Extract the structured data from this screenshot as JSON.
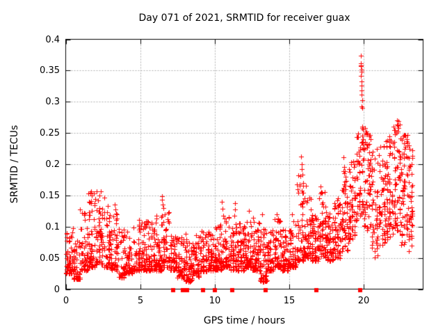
{
  "figure": {
    "title": "Day 071 of 2021, SRMTID for receiver guax",
    "xlabel": "GPS time / hours",
    "ylabel": "SRMTID / TECUs",
    "background_color": "#ffffff",
    "text_color": "#000000"
  },
  "chart_data": {
    "type": "scatter",
    "title": "Day 071 of 2021, SRMTID for receiver guax",
    "xlabel": "GPS time / hours",
    "ylabel": "SRMTID / TECUs",
    "xlim": [
      0,
      24
    ],
    "ylim": [
      0,
      0.4
    ],
    "xtick_values": [
      0,
      5,
      10,
      15,
      20
    ],
    "xtick_labels": [
      "0",
      "5",
      "10",
      "15",
      "20"
    ],
    "ytick_values": [
      0,
      0.05,
      0.1,
      0.15,
      0.2,
      0.25,
      0.3,
      0.35,
      0.4
    ],
    "ytick_labels": [
      "0",
      "0.05",
      "0.1",
      "0.15",
      "0.2",
      "0.25",
      "0.3",
      "0.35",
      "0.4"
    ],
    "grid": true,
    "grid_style": "dashed",
    "grid_color": "#b0b0b0",
    "axis_color": "#000000",
    "legend_position": "none",
    "series": [
      {
        "name": "SRMTID",
        "marker": "plus",
        "color": "#ff0000",
        "envelope_bins_format": "[x_start_hours, x_end_hours, y_min_TECUs, y_max_TECUs, point_count]",
        "envelope_bins": [
          [
            0.0,
            0.5,
            0.025,
            0.095,
            55
          ],
          [
            0.5,
            1.0,
            0.016,
            0.085,
            55
          ],
          [
            1.0,
            1.5,
            0.03,
            0.13,
            50
          ],
          [
            1.5,
            2.0,
            0.035,
            0.155,
            55
          ],
          [
            2.0,
            2.5,
            0.04,
            0.15,
            55
          ],
          [
            2.5,
            3.0,
            0.035,
            0.135,
            50
          ],
          [
            3.0,
            3.5,
            0.03,
            0.125,
            50
          ],
          [
            3.5,
            4.0,
            0.018,
            0.1,
            50
          ],
          [
            4.0,
            4.5,
            0.025,
            0.095,
            50
          ],
          [
            4.5,
            5.0,
            0.03,
            0.115,
            55
          ],
          [
            5.0,
            5.5,
            0.03,
            0.115,
            55
          ],
          [
            5.5,
            6.0,
            0.03,
            0.112,
            55
          ],
          [
            6.0,
            6.5,
            0.03,
            0.12,
            55
          ],
          [
            6.5,
            7.0,
            0.035,
            0.125,
            50
          ],
          [
            7.0,
            7.5,
            0.03,
            0.088,
            50
          ],
          [
            7.5,
            8.0,
            0.018,
            0.085,
            50
          ],
          [
            8.0,
            8.5,
            0.012,
            0.09,
            55
          ],
          [
            8.5,
            9.0,
            0.02,
            0.088,
            55
          ],
          [
            9.0,
            9.5,
            0.028,
            0.092,
            50
          ],
          [
            9.5,
            10.0,
            0.03,
            0.1,
            55
          ],
          [
            10.0,
            10.5,
            0.03,
            0.105,
            55
          ],
          [
            10.5,
            11.0,
            0.035,
            0.118,
            55
          ],
          [
            11.0,
            11.5,
            0.03,
            0.105,
            50
          ],
          [
            11.5,
            12.0,
            0.03,
            0.11,
            55
          ],
          [
            12.0,
            12.5,
            0.035,
            0.115,
            60
          ],
          [
            12.5,
            13.0,
            0.03,
            0.118,
            60
          ],
          [
            13.0,
            13.5,
            0.012,
            0.1,
            55
          ],
          [
            13.5,
            14.0,
            0.03,
            0.095,
            50
          ],
          [
            14.0,
            14.5,
            0.035,
            0.115,
            55
          ],
          [
            14.5,
            15.0,
            0.03,
            0.11,
            55
          ],
          [
            15.0,
            15.5,
            0.035,
            0.118,
            55
          ],
          [
            15.5,
            16.0,
            0.045,
            0.19,
            55
          ],
          [
            16.0,
            16.5,
            0.05,
            0.155,
            55
          ],
          [
            16.5,
            17.0,
            0.045,
            0.13,
            55
          ],
          [
            17.0,
            17.5,
            0.05,
            0.158,
            55
          ],
          [
            17.5,
            18.0,
            0.045,
            0.125,
            55
          ],
          [
            18.0,
            18.5,
            0.05,
            0.145,
            55
          ],
          [
            18.5,
            19.0,
            0.06,
            0.195,
            55
          ],
          [
            19.0,
            19.5,
            0.08,
            0.205,
            55
          ],
          [
            19.5,
            20.0,
            0.11,
            0.26,
            55
          ],
          [
            20.0,
            20.5,
            0.09,
            0.26,
            55
          ],
          [
            20.5,
            21.0,
            0.05,
            0.22,
            45
          ],
          [
            21.0,
            21.5,
            0.07,
            0.23,
            55
          ],
          [
            21.5,
            22.0,
            0.08,
            0.245,
            60
          ],
          [
            22.0,
            22.5,
            0.09,
            0.27,
            60
          ],
          [
            22.5,
            23.0,
            0.07,
            0.248,
            60
          ],
          [
            23.0,
            23.3,
            0.06,
            0.23,
            40
          ]
        ],
        "notable_points_format": "[x_hours, y_TECUs]",
        "notable_points": [
          [
            0.5,
            0.098
          ],
          [
            0.95,
            0.128
          ],
          [
            1.7,
            0.157
          ],
          [
            1.75,
            0.15
          ],
          [
            1.9,
            0.153
          ],
          [
            2.1,
            0.156
          ],
          [
            2.36,
            0.156
          ],
          [
            2.6,
            0.147
          ],
          [
            3.3,
            0.135
          ],
          [
            3.35,
            0.128
          ],
          [
            6.45,
            0.149
          ],
          [
            6.48,
            0.143
          ],
          [
            6.5,
            0.135
          ],
          [
            6.55,
            0.13
          ],
          [
            6.9,
            0.122
          ],
          [
            9.15,
            0.093
          ],
          [
            10.5,
            0.14
          ],
          [
            10.53,
            0.129
          ],
          [
            10.56,
            0.117
          ],
          [
            11.33,
            0.118
          ],
          [
            11.35,
            0.138
          ],
          [
            11.37,
            0.128
          ],
          [
            12.3,
            0.125
          ],
          [
            13.2,
            0.12
          ],
          [
            14.15,
            0.12
          ],
          [
            15.2,
            0.12
          ],
          [
            15.81,
            0.212
          ],
          [
            15.84,
            0.2
          ],
          [
            15.87,
            0.192
          ],
          [
            15.9,
            0.183
          ],
          [
            15.93,
            0.17
          ],
          [
            16.15,
            0.165
          ],
          [
            17.1,
            0.164
          ],
          [
            17.15,
            0.155
          ],
          [
            18.3,
            0.145
          ],
          [
            18.65,
            0.211
          ],
          [
            18.68,
            0.196
          ],
          [
            18.7,
            0.185
          ],
          [
            18.73,
            0.172
          ],
          [
            19.15,
            0.2
          ],
          [
            19.3,
            0.205
          ],
          [
            19.35,
            0.195
          ],
          [
            19.82,
            0.374
          ],
          [
            19.82,
            0.358
          ],
          [
            19.83,
            0.362
          ],
          [
            19.83,
            0.341
          ],
          [
            19.84,
            0.357
          ],
          [
            19.85,
            0.352
          ],
          [
            19.85,
            0.326
          ],
          [
            19.86,
            0.348
          ],
          [
            19.87,
            0.333
          ],
          [
            19.87,
            0.293
          ],
          [
            19.88,
            0.318
          ],
          [
            19.89,
            0.311
          ],
          [
            19.9,
            0.302
          ],
          [
            19.9,
            0.29
          ],
          [
            19.91,
            0.26
          ],
          [
            19.92,
            0.258
          ],
          [
            19.94,
            0.24
          ],
          [
            19.95,
            0.235
          ],
          [
            19.96,
            0.225
          ],
          [
            20.1,
            0.258
          ],
          [
            20.15,
            0.248
          ],
          [
            20.6,
            0.22
          ],
          [
            20.9,
            0.225
          ],
          [
            21.5,
            0.237
          ],
          [
            21.55,
            0.228
          ],
          [
            22.25,
            0.27
          ],
          [
            22.28,
            0.262
          ],
          [
            22.3,
            0.252
          ],
          [
            22.35,
            0.258
          ],
          [
            22.9,
            0.24
          ],
          [
            22.95,
            0.247
          ],
          [
            23.05,
            0.23
          ],
          [
            23.1,
            0.225
          ]
        ]
      },
      {
        "name": "zero-line-markers",
        "marker": "filled-square",
        "color": "#ff0000",
        "y": 0,
        "x_values": [
          7.2,
          7.88,
          8.16,
          9.21,
          10.02,
          11.2,
          13.42,
          16.85,
          19.76
        ]
      }
    ]
  }
}
